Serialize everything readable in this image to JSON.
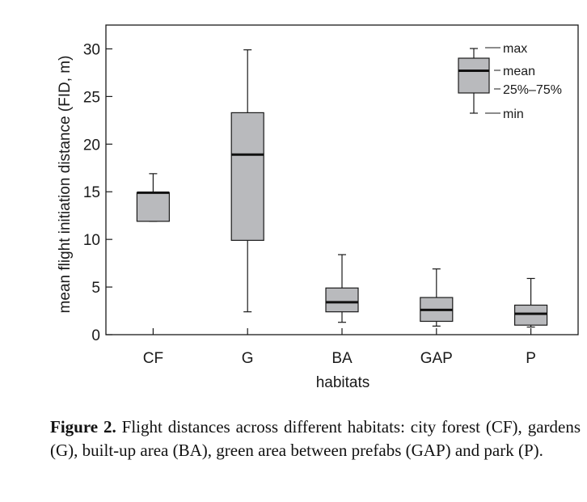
{
  "chart_data": {
    "type": "box",
    "xlabel": "habitats",
    "ylabel": "mean flight initiation distance (FID, m)",
    "ylim": [
      0,
      32.5
    ],
    "yticks": [
      0,
      5,
      10,
      15,
      20,
      25,
      30
    ],
    "categories": [
      "CF",
      "G",
      "BA",
      "GAP",
      "P"
    ],
    "boxes": [
      {
        "category": "CF",
        "min": 11.9,
        "q1": 11.9,
        "mean": 14.9,
        "q3": 14.9,
        "max": 16.9
      },
      {
        "category": "G",
        "min": 2.4,
        "q1": 9.9,
        "mean": 18.9,
        "q3": 23.3,
        "max": 29.9
      },
      {
        "category": "BA",
        "min": 1.3,
        "q1": 2.4,
        "mean": 3.4,
        "q3": 4.9,
        "max": 8.4
      },
      {
        "category": "GAP",
        "min": 0.9,
        "q1": 1.4,
        "mean": 2.6,
        "q3": 3.9,
        "max": 6.9
      },
      {
        "category": "P",
        "min": 0.8,
        "q1": 1.0,
        "mean": 2.2,
        "q3": 3.1,
        "max": 5.9
      }
    ],
    "legend": {
      "position": "top-right",
      "labels": {
        "max": "max",
        "mean": "mean",
        "box": "25%–75%",
        "min": "min"
      }
    },
    "grid": false,
    "colors": {
      "box_fill": "#b9babd",
      "stroke": "#1a1a1a",
      "mean_line": "#111111"
    }
  },
  "caption": {
    "label": "Figure 2.",
    "text": "Flight distances across different habitats: city forest (CF), gardens (G), built-up area (BA), green area between prefabs (GAP) and park (P)."
  }
}
